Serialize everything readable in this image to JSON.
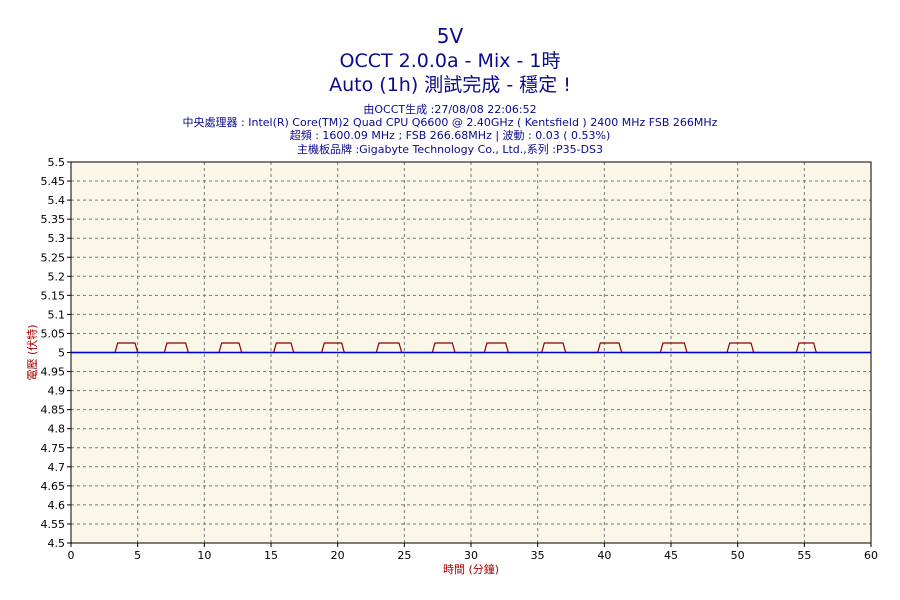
{
  "header": {
    "title_line1": "5V",
    "title_line2": "OCCT 2.0.0a - Mix - 1時",
    "title_line3": "Auto (1h) 測試完成 - 穩定 !",
    "info_line1": "由OCCT生成 :27/08/08 22:06:52",
    "info_line2": "中央處理器 : Intel(R) Core(TM)2 Quad CPU Q6600 @ 2.40GHz ( Kentsfield ) 2400 MHz FSB 266MHz",
    "info_line3": "超頻 : 1600.09 MHz ; FSB 266.68MHz | 波動 : 0.03 ( 0.53%)",
    "info_line4": "主機板品牌 :Gigabyte Technology Co., Ltd.,系列 :P35-DS3"
  },
  "colors": {
    "plot_background": "#fbf7e8",
    "grid": "#777777",
    "series_red": "#8b0000",
    "series_blue": "#0000cc",
    "title": "#0a0a8c",
    "axis_label": "#aa0000"
  },
  "chart_data": {
    "type": "line",
    "title": "5V",
    "xlabel": "時間 (分鐘)",
    "ylabel": "電壓 (伏特)",
    "xlim": [
      0,
      60
    ],
    "ylim": [
      4.5,
      5.5
    ],
    "x_ticks": [
      "0",
      "5",
      "10",
      "15",
      "20",
      "25",
      "30",
      "35",
      "40",
      "45",
      "50",
      "55",
      "60"
    ],
    "y_ticks": [
      "5.5",
      "5.45",
      "5.4",
      "5.35",
      "5.3",
      "5.25",
      "5.2",
      "5.15",
      "5.1",
      "5.05",
      "5",
      "4.95",
      "4.9",
      "4.85",
      "4.8",
      "4.75",
      "4.7",
      "4.65",
      "4.6",
      "4.55",
      "4.5"
    ],
    "grid": true,
    "series": [
      {
        "color": "#8b0000",
        "x": [
          0,
          3.3,
          3.5,
          4.8,
          5.0,
          7.0,
          7.2,
          8.6,
          8.8,
          11.1,
          11.3,
          12.6,
          12.8,
          15.2,
          15.4,
          16.5,
          16.7,
          18.8,
          19.0,
          20.3,
          20.5,
          22.9,
          23.1,
          24.6,
          24.8,
          27.1,
          27.3,
          28.6,
          28.8,
          31.0,
          31.2,
          32.6,
          32.8,
          35.3,
          35.5,
          36.9,
          37.1,
          39.5,
          39.7,
          41.1,
          41.3,
          44.2,
          44.4,
          46.0,
          46.2,
          49.2,
          49.4,
          51.0,
          51.2,
          54.4,
          54.6,
          55.7,
          55.9,
          60
        ],
        "y": [
          5.0,
          5.0,
          5.025,
          5.025,
          5.0,
          5.0,
          5.025,
          5.025,
          5.0,
          5.0,
          5.025,
          5.025,
          5.0,
          5.0,
          5.025,
          5.025,
          5.0,
          5.0,
          5.025,
          5.025,
          5.0,
          5.0,
          5.025,
          5.025,
          5.0,
          5.0,
          5.025,
          5.025,
          5.0,
          5.0,
          5.025,
          5.025,
          5.0,
          5.0,
          5.025,
          5.025,
          5.0,
          5.0,
          5.025,
          5.025,
          5.0,
          5.0,
          5.025,
          5.025,
          5.0,
          5.0,
          5.025,
          5.025,
          5.0,
          5.0,
          5.025,
          5.025,
          5.0,
          5.0
        ]
      },
      {
        "color": "#0000cc",
        "x": [
          0,
          60
        ],
        "y": [
          5.0,
          5.0
        ]
      }
    ]
  }
}
